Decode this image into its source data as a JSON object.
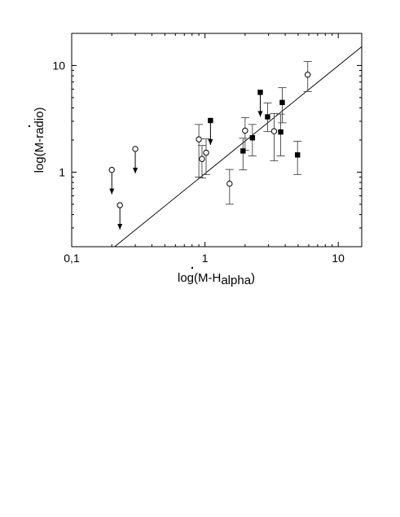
{
  "chart_data": {
    "type": "scatter",
    "title": "",
    "xlabel": "log(M-H",
    "xlabel_sub": "alpha",
    "xlabel_close": ")",
    "ylabel": "log(M-radio)",
    "x_scale": "log",
    "y_scale": "log",
    "xlim": [
      0.1,
      15
    ],
    "ylim": [
      0.2,
      20
    ],
    "x_ticks": [
      {
        "value": 0.1,
        "label": "0,1"
      },
      {
        "value": 1,
        "label": "1"
      },
      {
        "value": 10,
        "label": "10"
      }
    ],
    "y_ticks": [
      {
        "value": 1,
        "label": "1"
      },
      {
        "value": 10,
        "label": "10"
      }
    ],
    "grid": false,
    "legend": "none",
    "fit_line": {
      "x": [
        0.21,
        15
      ],
      "y": [
        0.2,
        15
      ]
    },
    "series": [
      {
        "marker": "open-circle",
        "points": [
          {
            "x": 0.2,
            "y": 1.05,
            "upper_limit": true
          },
          {
            "x": 0.23,
            "y": 0.49,
            "upper_limit": true
          },
          {
            "x": 0.3,
            "y": 1.65,
            "upper_limit": true
          },
          {
            "x": 0.9,
            "y": 2.03,
            "err_lo": 0.9,
            "err_hi": 2.8
          },
          {
            "x": 0.95,
            "y": 1.33,
            "err_lo": 0.88,
            "err_hi": 1.78
          },
          {
            "x": 1.02,
            "y": 1.52,
            "err_lo": 0.95,
            "err_hi": 2.05
          },
          {
            "x": 1.53,
            "y": 0.78,
            "err_lo": 0.5,
            "err_hi": 1.06
          },
          {
            "x": 2.0,
            "y": 2.45,
            "err_lo": 1.6,
            "err_hi": 3.25
          },
          {
            "x": 3.3,
            "y": 2.42,
            "err_lo": 1.28,
            "err_hi": 3.55
          },
          {
            "x": 5.9,
            "y": 8.2,
            "err_lo": 5.7,
            "err_hi": 10.9
          }
        ]
      },
      {
        "marker": "filled-square",
        "points": [
          {
            "x": 1.1,
            "y": 3.05,
            "upper_limit": true
          },
          {
            "x": 1.93,
            "y": 1.58,
            "err_lo": 1.05,
            "err_hi": 2.08
          },
          {
            "x": 2.27,
            "y": 2.1,
            "err_lo": 1.42,
            "err_hi": 2.8
          },
          {
            "x": 2.6,
            "y": 5.6,
            "upper_limit": true
          },
          {
            "x": 2.95,
            "y": 3.3,
            "err_lo": 2.4,
            "err_hi": 4.45
          },
          {
            "x": 3.7,
            "y": 2.38,
            "err_lo": 1.42,
            "err_hi": 3.5
          },
          {
            "x": 3.8,
            "y": 4.5,
            "err_lo": 2.9,
            "err_hi": 6.2
          },
          {
            "x": 4.95,
            "y": 1.45,
            "err_lo": 0.95,
            "err_hi": 1.95
          }
        ]
      }
    ]
  }
}
